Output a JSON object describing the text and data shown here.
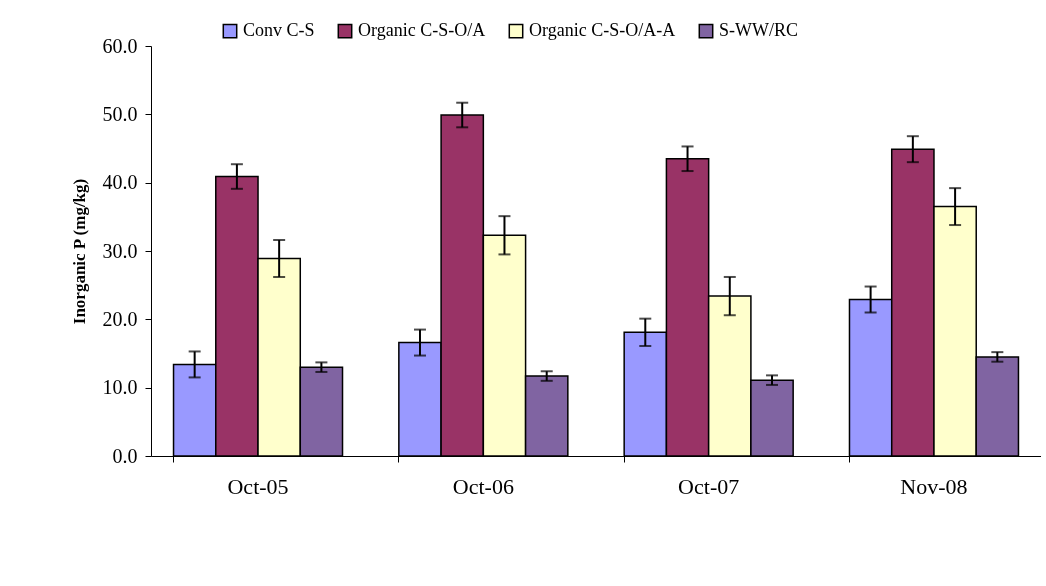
{
  "chart_data": {
    "type": "bar",
    "ylabel": "Inorganic P (mg/kg)",
    "categories": [
      "Oct-05",
      "Oct-06",
      "Oct-07",
      "Nov-08"
    ],
    "series": [
      {
        "name": "Conv C-S",
        "color": "#9999ff",
        "values": [
          13.4,
          16.6,
          18.1,
          22.9
        ],
        "errors": [
          1.9,
          1.9,
          2.0,
          1.9
        ]
      },
      {
        "name": "Organic C-S-O/A",
        "color": "#993366",
        "values": [
          40.9,
          49.9,
          43.5,
          44.9
        ],
        "errors": [
          1.8,
          1.8,
          1.8,
          1.9
        ]
      },
      {
        "name": "Organic C-S-O/A-A",
        "color": "#ffffcc",
        "values": [
          28.9,
          32.3,
          23.4,
          36.5
        ],
        "errors": [
          2.7,
          2.8,
          2.8,
          2.7
        ]
      },
      {
        "name": "S-WW/RC",
        "color": "#8064a2",
        "values": [
          13.0,
          11.7,
          11.1,
          14.5
        ],
        "errors": [
          0.7,
          0.7,
          0.7,
          0.7
        ]
      }
    ],
    "ylim": [
      0,
      60
    ],
    "yticks": [
      {
        "value": 0,
        "label": "0.0"
      },
      {
        "value": 10,
        "label": "10.0"
      },
      {
        "value": 20,
        "label": "20.0"
      },
      {
        "value": 30,
        "label": "30.0"
      },
      {
        "value": 40,
        "label": "40.0"
      },
      {
        "value": 50,
        "label": "50.0"
      },
      {
        "value": 60,
        "label": "60.0"
      }
    ],
    "grid": false,
    "legend": "top"
  }
}
